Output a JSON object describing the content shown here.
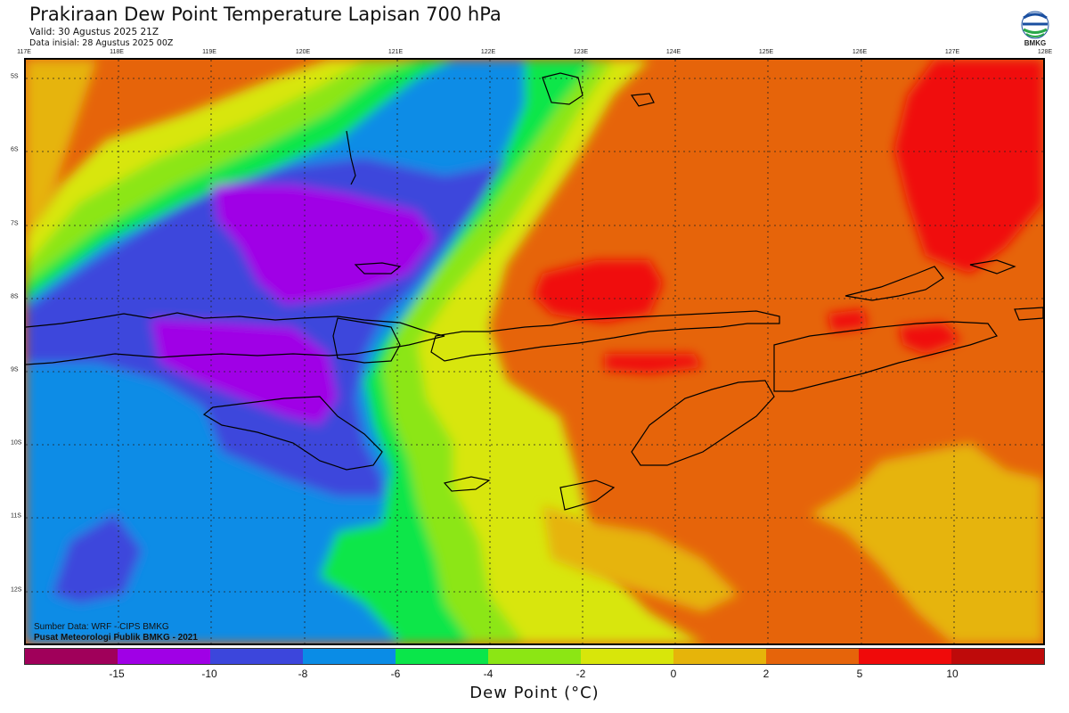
{
  "header": {
    "title": "Prakiraan Dew Point Temperature Lapisan 700 hPa",
    "valid": "Valid: 30 Agustus 2025 21Z",
    "init": "Data inisial: 28 Agustus 2025 00Z"
  },
  "logo": {
    "text": "BMKG",
    "icon": "bmkg-logo-icon"
  },
  "map": {
    "lon_ticks": [
      "117E",
      "118E",
      "119E",
      "120E",
      "121E",
      "122E",
      "123E",
      "124E",
      "125E",
      "126E",
      "127E",
      "128E"
    ],
    "lat_ticks": [
      "5S",
      "6S",
      "7S",
      "8S",
      "9S",
      "10S",
      "11S",
      "12S"
    ],
    "region_icon": "island-coastlines",
    "credit_line1": "Sumber Data: WRF - CIPS BMKG",
    "credit_line2": "Pusat Meteorologi Publik BMKG - 2021"
  },
  "colorbar": {
    "ticks": [
      "-15",
      "-10",
      "-8",
      "-6",
      "-4",
      "-2",
      "0",
      "2",
      "5",
      "10"
    ],
    "colors": [
      "#a0005a",
      "#a000e6",
      "#3c46dc",
      "#0a8ce6",
      "#0ae64a",
      "#8ce614",
      "#d8e60a",
      "#e6b40a",
      "#e6640a",
      "#f00a0a",
      "#be0a0a"
    ],
    "label": "Dew Point (°C)"
  }
}
